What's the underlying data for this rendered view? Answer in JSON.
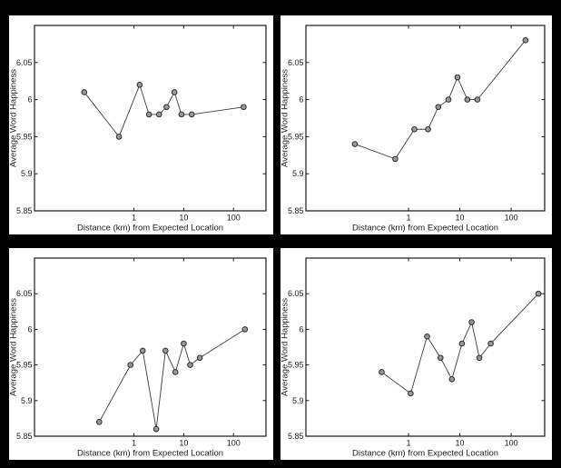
{
  "figure": {
    "background": "#000000",
    "panel_background": "#ffffff",
    "axis_color": "#1c1c1c",
    "tick_label_color": "#1c1c1c"
  },
  "chart_data": [
    {
      "id": "top-left",
      "type": "line",
      "title": "",
      "xlabel": "Distance (km) from Expected Location",
      "ylabel": "Average Word Happiness",
      "x_scale": "log",
      "xlim": [
        0.01,
        450
      ],
      "ylim": [
        5.85,
        6.1
      ],
      "x_ticks": [
        1,
        10,
        100
      ],
      "x_tick_labels": [
        "1",
        "10",
        "100"
      ],
      "y_ticks": [
        5.85,
        5.9,
        5.95,
        6,
        6.05
      ],
      "y_tick_labels": [
        "5.85",
        "5.9",
        "5.95",
        "6",
        "6.05"
      ],
      "grid": false,
      "legend": null,
      "x": [
        0.1,
        0.5,
        1.3,
        2,
        3.2,
        4.5,
        6.5,
        9,
        14.5,
        160
      ],
      "y": [
        6.01,
        5.95,
        6.02,
        5.98,
        5.98,
        5.99,
        6.01,
        5.98,
        5.98,
        5.99
      ],
      "marker": "circle",
      "marker_fill": "#999999",
      "marker_edge": "#2b2b2b",
      "line_color": "#3d3d3d"
    },
    {
      "id": "top-right",
      "type": "line",
      "title": "",
      "xlabel": "Distance (km) from Expected Location",
      "ylabel": "Average Word Happiness",
      "x_scale": "log",
      "xlim": [
        0.01,
        450
      ],
      "ylim": [
        5.85,
        6.1
      ],
      "x_ticks": [
        1,
        10,
        100
      ],
      "x_tick_labels": [
        "1",
        "10",
        "100"
      ],
      "y_ticks": [
        5.85,
        5.9,
        5.95,
        6,
        6.05
      ],
      "y_tick_labels": [
        "5.85",
        "5.9",
        "5.95",
        "6",
        "6.05"
      ],
      "grid": false,
      "legend": null,
      "x": [
        0.09,
        0.55,
        1.3,
        2.4,
        3.8,
        6,
        9,
        14,
        22,
        190
      ],
      "y": [
        5.94,
        5.92,
        5.96,
        5.96,
        5.99,
        6.0,
        6.03,
        6.0,
        6.0,
        6.08
      ],
      "marker": "circle",
      "marker_fill": "#999999",
      "marker_edge": "#2b2b2b",
      "line_color": "#3d3d3d"
    },
    {
      "id": "bottom-left",
      "type": "line",
      "title": "",
      "xlabel": "Distance (km) from Expected Location",
      "ylabel": "Average Word Happiness",
      "x_scale": "log",
      "xlim": [
        0.01,
        450
      ],
      "ylim": [
        5.85,
        6.1
      ],
      "x_ticks": [
        1,
        10,
        100
      ],
      "x_tick_labels": [
        "1",
        "10",
        "100"
      ],
      "y_ticks": [
        5.85,
        5.9,
        5.95,
        6,
        6.05
      ],
      "y_tick_labels": [
        "5.85",
        "5.9",
        "5.95",
        "6",
        "6.05"
      ],
      "grid": false,
      "legend": null,
      "x": [
        0.2,
        0.85,
        1.5,
        2.8,
        4.3,
        6.8,
        10,
        13.5,
        21,
        170
      ],
      "y": [
        5.87,
        5.95,
        5.97,
        5.86,
        5.97,
        5.94,
        5.98,
        5.95,
        5.96,
        6.0
      ],
      "marker": "circle",
      "marker_fill": "#999999",
      "marker_edge": "#2b2b2b",
      "line_color": "#3d3d3d"
    },
    {
      "id": "bottom-right",
      "type": "line",
      "title": "",
      "xlabel": "Distance (km) from Expected Location",
      "ylabel": "Average Word Happiness",
      "x_scale": "log",
      "xlim": [
        0.01,
        450
      ],
      "ylim": [
        5.85,
        6.1
      ],
      "x_ticks": [
        1,
        10,
        100
      ],
      "x_tick_labels": [
        "1",
        "10",
        "100"
      ],
      "y_ticks": [
        5.85,
        5.9,
        5.95,
        6,
        6.05
      ],
      "y_tick_labels": [
        "5.85",
        "5.9",
        "5.95",
        "6",
        "6.05"
      ],
      "grid": false,
      "legend": null,
      "x": [
        0.3,
        1.1,
        2.3,
        4.2,
        7,
        11,
        17,
        24,
        40,
        340
      ],
      "y": [
        5.94,
        5.91,
        5.99,
        5.96,
        5.93,
        5.98,
        6.01,
        5.96,
        5.98,
        6.05
      ],
      "marker": "circle",
      "marker_fill": "#999999",
      "marker_edge": "#2b2b2b",
      "line_color": "#3d3d3d"
    }
  ]
}
